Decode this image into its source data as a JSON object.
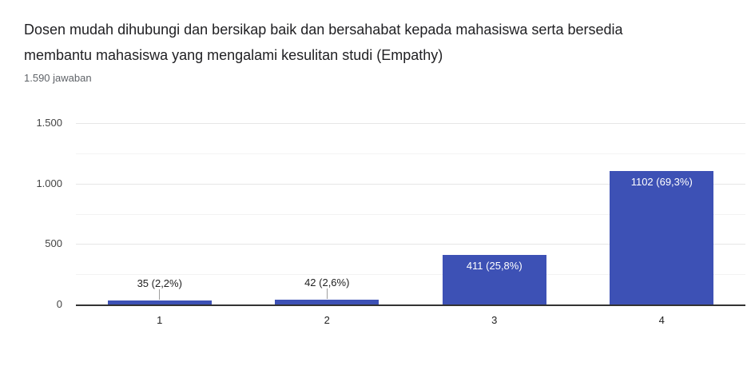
{
  "header": {
    "title": "Dosen mudah dihubungi dan bersikap baik dan bersahabat kepada mahasiswa serta bersedia membantu mahasiswa yang mengalami kesulitan studi (Empathy)",
    "response_count": "1.590 jawaban"
  },
  "chart_data": {
    "type": "bar",
    "title": "Dosen mudah dihubungi dan bersikap baik dan bersahabat kepada mahasiswa serta bersedia membantu mahasiswa yang mengalami kesulitan studi (Empathy)",
    "subtitle": "1.590 jawaban",
    "categories": [
      "1",
      "2",
      "3",
      "4"
    ],
    "values": [
      35,
      42,
      411,
      1102
    ],
    "bar_labels": [
      "35 (2,2%)",
      "42 (2,6%)",
      "411 (25,8%)",
      "1102 (69,3%)"
    ],
    "label_placement": [
      "outside",
      "outside",
      "inside",
      "inside"
    ],
    "xlabel": "",
    "ylabel": "",
    "ylim": [
      0,
      1500
    ],
    "yticks": [
      {
        "value": 0,
        "label": "0"
      },
      {
        "value": 500,
        "label": "500"
      },
      {
        "value": 1000,
        "label": "1.000"
      },
      {
        "value": 1500,
        "label": "1.500"
      }
    ],
    "minor_gridlines": [
      250,
      750,
      1250
    ],
    "grid": true,
    "legend": "none",
    "colors": {
      "bar": "#3d51b5",
      "label_inside_text": "#ffffff",
      "label_outside_text": "#212121",
      "stem": "#9e9e9e",
      "axis_baseline": "#333333",
      "major_gridline": "#e6e6e6",
      "minor_gridline": "#f3f3f3",
      "tick_text": "#444444",
      "title_text": "#212124",
      "subtitle_text": "#5f6368"
    }
  }
}
